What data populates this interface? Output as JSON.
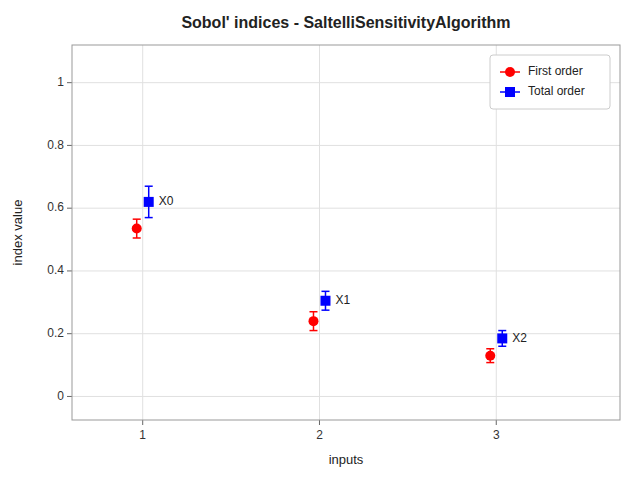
{
  "chart_data": {
    "type": "scatter",
    "title": "Sobol' indices - SaltelliSensitivityAlgorithm",
    "x_label": "inputs",
    "y_label": "index value",
    "x": [
      1,
      2,
      3
    ],
    "series": [
      {
        "name": "First order",
        "color": "#ff0000",
        "marker": "circle",
        "values": [
          0.535,
          0.24,
          0.13
        ],
        "errors": [
          0.03,
          0.03,
          0.022
        ]
      },
      {
        "name": "Total order",
        "color": "#0000ff",
        "marker": "square",
        "values": [
          0.62,
          0.305,
          0.185
        ],
        "errors": [
          0.05,
          0.03,
          0.025
        ]
      }
    ],
    "annotations": [
      {
        "text": "X0",
        "x": 1,
        "y": 0.62
      },
      {
        "text": "X1",
        "x": 2,
        "y": 0.305
      },
      {
        "text": "X2",
        "x": 3,
        "y": 0.185
      }
    ],
    "xlim": [
      0.6,
      3.7
    ],
    "ylim": [
      -0.075,
      1.12
    ],
    "xticks": [
      1,
      2,
      3
    ],
    "yticks": [
      0,
      0.2,
      0.4,
      0.6,
      0.8,
      1
    ],
    "grid": true,
    "legend": "upper right"
  }
}
